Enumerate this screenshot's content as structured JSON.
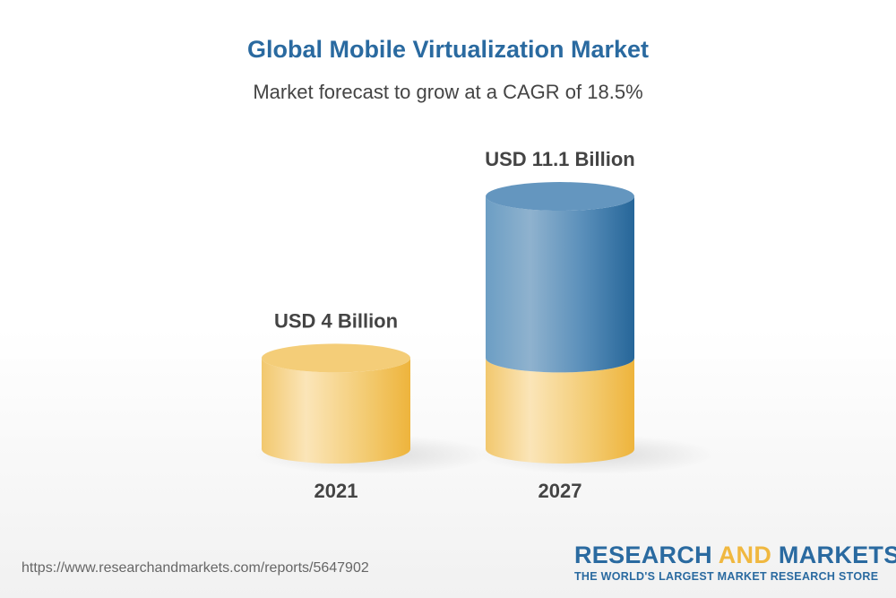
{
  "chart_data": {
    "type": "bar",
    "style": "3d-cylinder",
    "title": "Global Mobile Virtualization Market",
    "subtitle": "Market forecast to grow at a CAGR of 18.5%",
    "categories": [
      "2021",
      "2027"
    ],
    "values": [
      4,
      11.1
    ],
    "data_labels": [
      "USD 4 Billion",
      "USD 11.1 Billion"
    ],
    "unit": "USD Billion",
    "colors": {
      "base": "#f3c766",
      "growth": "#3a78a8"
    },
    "grid": false,
    "legend": "none"
  },
  "footer": {
    "url": "https://www.researchandmarkets.com/reports/5647902",
    "logo": {
      "part1": "RESEARCH ",
      "part2": "AND",
      "part3": " MARKETS",
      "tagline": "THE WORLD'S LARGEST MARKET RESEARCH STORE"
    }
  }
}
